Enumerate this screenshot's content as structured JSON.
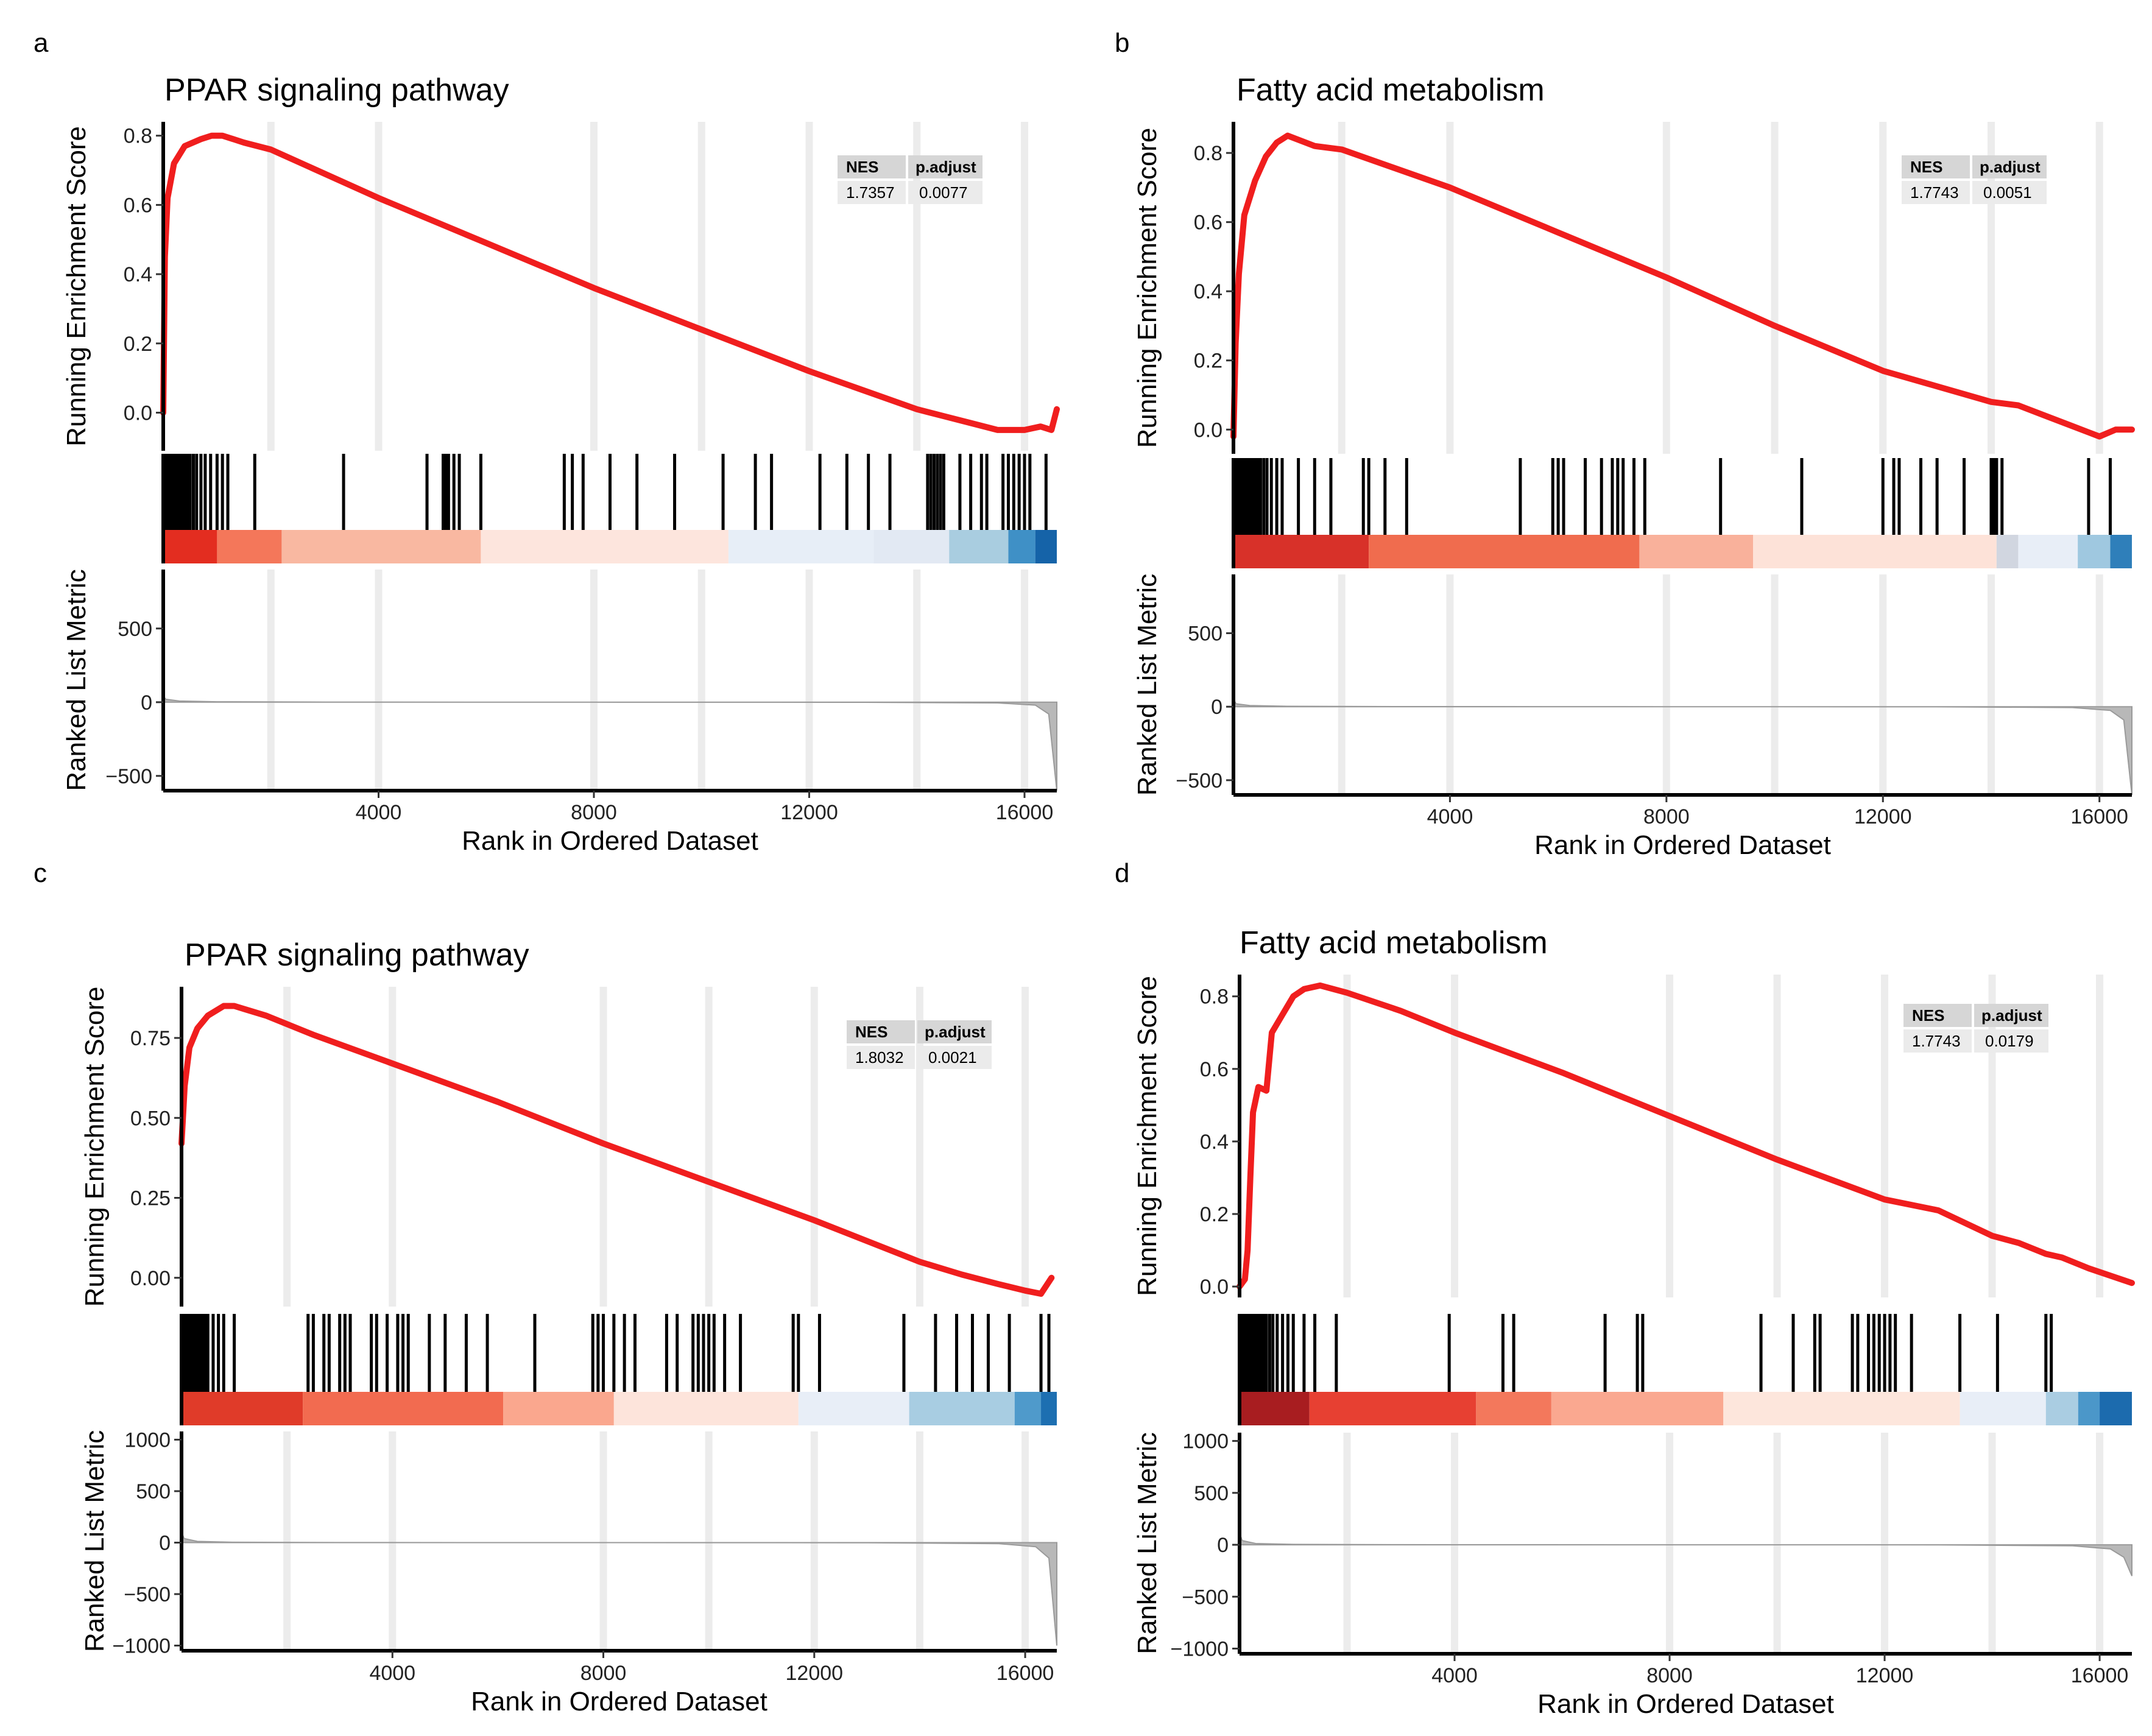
{
  "chart_data": [
    {
      "panel": "a",
      "type": "line",
      "title": "PPAR signaling pathway",
      "ylabel_top": "Running Enrichment Score",
      "ylabel_bottom": "Ranked List Metric",
      "xlabel": "Rank in Ordered Dataset",
      "x_range": [
        0,
        16600
      ],
      "x_ticks": [
        4000,
        8000,
        12000,
        16000
      ],
      "es_ylim": [
        -0.11,
        0.84
      ],
      "es_ticks": [
        0.0,
        0.2,
        0.4,
        0.6,
        0.8
      ],
      "es_tick_labels": [
        "0.0",
        "0.2",
        "0.4",
        "0.6",
        "0.8"
      ],
      "es_curve": [
        [
          0,
          0.0
        ],
        [
          30,
          0.45
        ],
        [
          80,
          0.62
        ],
        [
          200,
          0.72
        ],
        [
          400,
          0.77
        ],
        [
          700,
          0.79
        ],
        [
          900,
          0.8
        ],
        [
          1100,
          0.8
        ],
        [
          1500,
          0.78
        ],
        [
          2000,
          0.76
        ],
        [
          4000,
          0.62
        ],
        [
          6000,
          0.49
        ],
        [
          8000,
          0.36
        ],
        [
          10000,
          0.24
        ],
        [
          12000,
          0.12
        ],
        [
          14000,
          0.01
        ],
        [
          14500,
          -0.01
        ],
        [
          15000,
          -0.03
        ],
        [
          15500,
          -0.05
        ],
        [
          16000,
          -0.05
        ],
        [
          16300,
          -0.04
        ],
        [
          16500,
          -0.05
        ],
        [
          16600,
          0.01
        ]
      ],
      "metric_ylim": [
        -600,
        900
      ],
      "metric_ticks": [
        500,
        0,
        -500
      ],
      "metric_tick_labels": [
        "500",
        "0",
        "−500"
      ],
      "metric_curve": [
        [
          0,
          40
        ],
        [
          50,
          20
        ],
        [
          300,
          8
        ],
        [
          1000,
          3
        ],
        [
          3000,
          1
        ],
        [
          8000,
          0
        ],
        [
          13000,
          -1
        ],
        [
          15500,
          -5
        ],
        [
          16200,
          -20
        ],
        [
          16450,
          -80
        ],
        [
          16600,
          -600
        ]
      ],
      "hits": [
        5,
        25,
        45,
        65,
        85,
        110,
        135,
        160,
        190,
        230,
        270,
        310,
        350,
        400,
        450,
        500,
        560,
        620,
        700,
        780,
        880,
        1000,
        1100,
        1200,
        1700,
        3350,
        4900,
        5200,
        5250,
        5300,
        5400,
        5500,
        5900,
        7450,
        7600,
        7800,
        8300,
        8800,
        9500,
        10400,
        11000,
        11300,
        12200,
        12700,
        13100,
        13500,
        14200,
        14260,
        14320,
        14380,
        14440,
        14500,
        14800,
        15000,
        15200,
        15300,
        15600,
        15700,
        15800,
        15900,
        16000,
        16100,
        16400
      ],
      "heat_segments": [
        [
          0,
          1000,
          "#e32d20"
        ],
        [
          1000,
          2200,
          "#f4775a"
        ],
        [
          2200,
          5900,
          "#f9b8a1"
        ],
        [
          5900,
          10500,
          "#fde5dd"
        ],
        [
          10500,
          13200,
          "#e7eef7"
        ],
        [
          13200,
          14600,
          "#e2e9f3"
        ],
        [
          14600,
          15700,
          "#a9cde0"
        ],
        [
          15700,
          16200,
          "#3f90c6"
        ],
        [
          16200,
          16600,
          "#1563a8"
        ]
      ],
      "grid_x": [
        2000,
        4000,
        8000,
        10000,
        12000,
        14000,
        16000
      ],
      "stats_headers": [
        "NES",
        "p.adjust"
      ],
      "stats_values": [
        "1.7357",
        "0.0077"
      ]
    },
    {
      "panel": "b",
      "type": "line",
      "title": "Fatty acid metabolism",
      "ylabel_top": "Running Enrichment Score",
      "ylabel_bottom": "Ranked List Metric",
      "xlabel": "Rank in Ordered Dataset",
      "x_range": [
        0,
        16600
      ],
      "x_ticks": [
        4000,
        8000,
        12000,
        16000
      ],
      "es_ylim": [
        -0.07,
        0.89
      ],
      "es_ticks": [
        0.0,
        0.2,
        0.4,
        0.6,
        0.8
      ],
      "es_tick_labels": [
        "0.0",
        "0.2",
        "0.4",
        "0.6",
        "0.8"
      ],
      "es_curve": [
        [
          0,
          -0.02
        ],
        [
          40,
          0.25
        ],
        [
          100,
          0.45
        ],
        [
          200,
          0.62
        ],
        [
          400,
          0.72
        ],
        [
          600,
          0.79
        ],
        [
          800,
          0.83
        ],
        [
          900,
          0.84
        ],
        [
          1000,
          0.85
        ],
        [
          1500,
          0.82
        ],
        [
          2000,
          0.81
        ],
        [
          4000,
          0.7
        ],
        [
          6000,
          0.57
        ],
        [
          8000,
          0.44
        ],
        [
          10000,
          0.3
        ],
        [
          12000,
          0.17
        ],
        [
          14000,
          0.08
        ],
        [
          14500,
          0.07
        ],
        [
          15000,
          0.04
        ],
        [
          15500,
          0.01
        ],
        [
          16000,
          -0.02
        ],
        [
          16300,
          0.0
        ],
        [
          16600,
          0.0
        ]
      ],
      "metric_ylim": [
        -600,
        900
      ],
      "metric_ticks": [
        500,
        0,
        -500
      ],
      "metric_tick_labels": [
        "500",
        "0",
        "−500"
      ],
      "metric_curve": [
        [
          0,
          50
        ],
        [
          50,
          20
        ],
        [
          300,
          8
        ],
        [
          1000,
          3
        ],
        [
          3000,
          1
        ],
        [
          8000,
          0
        ],
        [
          13000,
          -1
        ],
        [
          15500,
          -6
        ],
        [
          16200,
          -25
        ],
        [
          16450,
          -90
        ],
        [
          16600,
          -600
        ]
      ],
      "hits": [
        5,
        25,
        45,
        65,
        85,
        110,
        135,
        160,
        190,
        230,
        270,
        310,
        350,
        400,
        450,
        500,
        560,
        620,
        700,
        800,
        900,
        1200,
        1500,
        1800,
        2400,
        2500,
        2800,
        3200,
        5300,
        5900,
        6000,
        6100,
        6500,
        6800,
        7000,
        7100,
        7200,
        7400,
        7600,
        9000,
        10500,
        12000,
        12200,
        12300,
        12700,
        13000,
        13500,
        14000,
        14050,
        14100,
        14200,
        15800,
        16200
      ],
      "heat_segments": [
        [
          0,
          2500,
          "#d83129"
        ],
        [
          2500,
          7500,
          "#f06c4e"
        ],
        [
          7500,
          9600,
          "#f9b19b"
        ],
        [
          9600,
          14100,
          "#fde2d8"
        ],
        [
          14100,
          14500,
          "#d1d6e0"
        ],
        [
          14500,
          15600,
          "#e8eef7"
        ],
        [
          15600,
          16200,
          "#9fc8e0"
        ],
        [
          16200,
          16600,
          "#2f7fba"
        ]
      ],
      "grid_x": [
        2000,
        4000,
        8000,
        10000,
        12000,
        14000,
        16000
      ],
      "stats_headers": [
        "NES",
        "p.adjust"
      ],
      "stats_values": [
        "1.7743",
        "0.0051"
      ]
    },
    {
      "panel": "c",
      "type": "line",
      "title": "PPAR signaling pathway",
      "ylabel_top": "Running Enrichment Score",
      "ylabel_bottom": "Ranked List Metric",
      "xlabel": "Rank in Ordered Dataset",
      "x_range": [
        0,
        16600
      ],
      "x_ticks": [
        4000,
        8000,
        12000,
        16000
      ],
      "es_ylim": [
        -0.09,
        0.91
      ],
      "es_ticks": [
        0.0,
        0.25,
        0.5,
        0.75
      ],
      "es_tick_labels": [
        "0.00",
        "0.25",
        "0.50",
        "0.75"
      ],
      "es_curve": [
        [
          0,
          0.42
        ],
        [
          60,
          0.6
        ],
        [
          150,
          0.72
        ],
        [
          300,
          0.78
        ],
        [
          500,
          0.82
        ],
        [
          800,
          0.85
        ],
        [
          1000,
          0.85
        ],
        [
          1200,
          0.84
        ],
        [
          1600,
          0.82
        ],
        [
          2500,
          0.76
        ],
        [
          4000,
          0.67
        ],
        [
          6000,
          0.55
        ],
        [
          8000,
          0.42
        ],
        [
          10000,
          0.3
        ],
        [
          12000,
          0.18
        ],
        [
          14000,
          0.05
        ],
        [
          14800,
          0.01
        ],
        [
          15500,
          -0.02
        ],
        [
          16000,
          -0.04
        ],
        [
          16300,
          -0.05
        ],
        [
          16500,
          0.0
        ]
      ],
      "metric_ylim": [
        -1050,
        1080
      ],
      "metric_ticks": [
        1000,
        500,
        0,
        -500,
        -1000
      ],
      "metric_tick_labels": [
        "1000",
        "500",
        "0",
        "−500",
        "−1000"
      ],
      "metric_curve": [
        [
          0,
          100
        ],
        [
          50,
          40
        ],
        [
          300,
          12
        ],
        [
          1000,
          4
        ],
        [
          3000,
          1
        ],
        [
          8000,
          0
        ],
        [
          13000,
          -1
        ],
        [
          15500,
          -10
        ],
        [
          16200,
          -40
        ],
        [
          16450,
          -150
        ],
        [
          16600,
          -1000
        ]
      ],
      "hits": [
        5,
        25,
        45,
        65,
        85,
        110,
        135,
        160,
        190,
        230,
        270,
        310,
        350,
        400,
        450,
        500,
        600,
        700,
        800,
        1000,
        2400,
        2500,
        2700,
        2800,
        3000,
        3100,
        3200,
        3600,
        3700,
        3900,
        4100,
        4200,
        4300,
        4700,
        5000,
        5400,
        5800,
        6700,
        7800,
        7900,
        8000,
        8200,
        8400,
        8600,
        9200,
        9400,
        9700,
        9800,
        9900,
        10000,
        10100,
        10300,
        10600,
        11600,
        11700,
        12100,
        13700,
        14300,
        14700,
        15000,
        15300,
        15700,
        16300,
        16450
      ],
      "heat_segments": [
        [
          0,
          2300,
          "#e03b29"
        ],
        [
          2300,
          6100,
          "#f26b50"
        ],
        [
          6100,
          8200,
          "#faa78e"
        ],
        [
          8200,
          11700,
          "#fde4db"
        ],
        [
          11700,
          13800,
          "#e8eef7"
        ],
        [
          13800,
          15800,
          "#a8cde2"
        ],
        [
          15800,
          16300,
          "#4f9acb"
        ],
        [
          16300,
          16600,
          "#1d6fb1"
        ]
      ],
      "grid_x": [
        2000,
        4000,
        8000,
        10000,
        12000,
        14000,
        16000
      ],
      "stats_headers": [
        "NES",
        "p.adjust"
      ],
      "stats_values": [
        "1.8032",
        "0.0021"
      ]
    },
    {
      "panel": "d",
      "type": "line",
      "title": "Fatty acid metabolism",
      "ylabel_top": "Running Enrichment Score",
      "ylabel_bottom": "Ranked List Metric",
      "xlabel": "Rank in Ordered Dataset",
      "x_range": [
        0,
        16600
      ],
      "x_ticks": [
        4000,
        8000,
        12000,
        16000
      ],
      "es_ylim": [
        -0.03,
        0.86
      ],
      "es_ticks": [
        0.0,
        0.2,
        0.4,
        0.6,
        0.8
      ],
      "es_tick_labels": [
        "0.0",
        "0.2",
        "0.4",
        "0.6",
        "0.8"
      ],
      "es_curve": [
        [
          0,
          0.0
        ],
        [
          100,
          0.02
        ],
        [
          150,
          0.1
        ],
        [
          200,
          0.3
        ],
        [
          250,
          0.48
        ],
        [
          350,
          0.55
        ],
        [
          500,
          0.54
        ],
        [
          600,
          0.7
        ],
        [
          800,
          0.75
        ],
        [
          1000,
          0.8
        ],
        [
          1200,
          0.82
        ],
        [
          1500,
          0.83
        ],
        [
          2000,
          0.81
        ],
        [
          3000,
          0.76
        ],
        [
          4000,
          0.7
        ],
        [
          6000,
          0.59
        ],
        [
          8000,
          0.47
        ],
        [
          10000,
          0.35
        ],
        [
          12000,
          0.24
        ],
        [
          13000,
          0.21
        ],
        [
          14000,
          0.14
        ],
        [
          14500,
          0.12
        ],
        [
          15000,
          0.09
        ],
        [
          15300,
          0.08
        ],
        [
          15800,
          0.05
        ],
        [
          16600,
          0.01
        ]
      ],
      "metric_ylim": [
        -1050,
        1080
      ],
      "metric_ticks": [
        1000,
        500,
        0,
        -500,
        -1000
      ],
      "metric_tick_labels": [
        "1000",
        "500",
        "0",
        "−500",
        "−1000"
      ],
      "metric_curve": [
        [
          0,
          110
        ],
        [
          50,
          40
        ],
        [
          300,
          12
        ],
        [
          1000,
          4
        ],
        [
          3000,
          1
        ],
        [
          8000,
          0
        ],
        [
          13000,
          -1
        ],
        [
          15500,
          -10
        ],
        [
          16200,
          -40
        ],
        [
          16450,
          -120
        ],
        [
          16600,
          -300
        ]
      ],
      "hits": [
        5,
        30,
        60,
        90,
        120,
        160,
        200,
        250,
        300,
        350,
        400,
        450,
        500,
        560,
        620,
        700,
        800,
        900,
        1000,
        1200,
        1400,
        1800,
        3900,
        4900,
        5100,
        6800,
        7400,
        7500,
        9700,
        10300,
        10700,
        10800,
        11400,
        11500,
        11700,
        11800,
        11900,
        12000,
        12100,
        12200,
        12500,
        13400,
        14100,
        15000,
        15100
      ],
      "heat_segments": [
        [
          0,
          1300,
          "#a81d20"
        ],
        [
          1300,
          4400,
          "#e74032"
        ],
        [
          4400,
          5800,
          "#f3785c"
        ],
        [
          5800,
          9000,
          "#faa890"
        ],
        [
          9000,
          13400,
          "#fde6dc"
        ],
        [
          13400,
          15000,
          "#e8eef7"
        ],
        [
          15000,
          15600,
          "#aacde2"
        ],
        [
          15600,
          16000,
          "#4b97c9"
        ],
        [
          16000,
          16600,
          "#1c6bae"
        ]
      ],
      "grid_x": [
        2000,
        4000,
        8000,
        10000,
        12000,
        14000,
        16000
      ],
      "stats_headers": [
        "NES",
        "p.adjust"
      ],
      "stats_values": [
        "1.7743",
        "0.0179"
      ]
    }
  ]
}
